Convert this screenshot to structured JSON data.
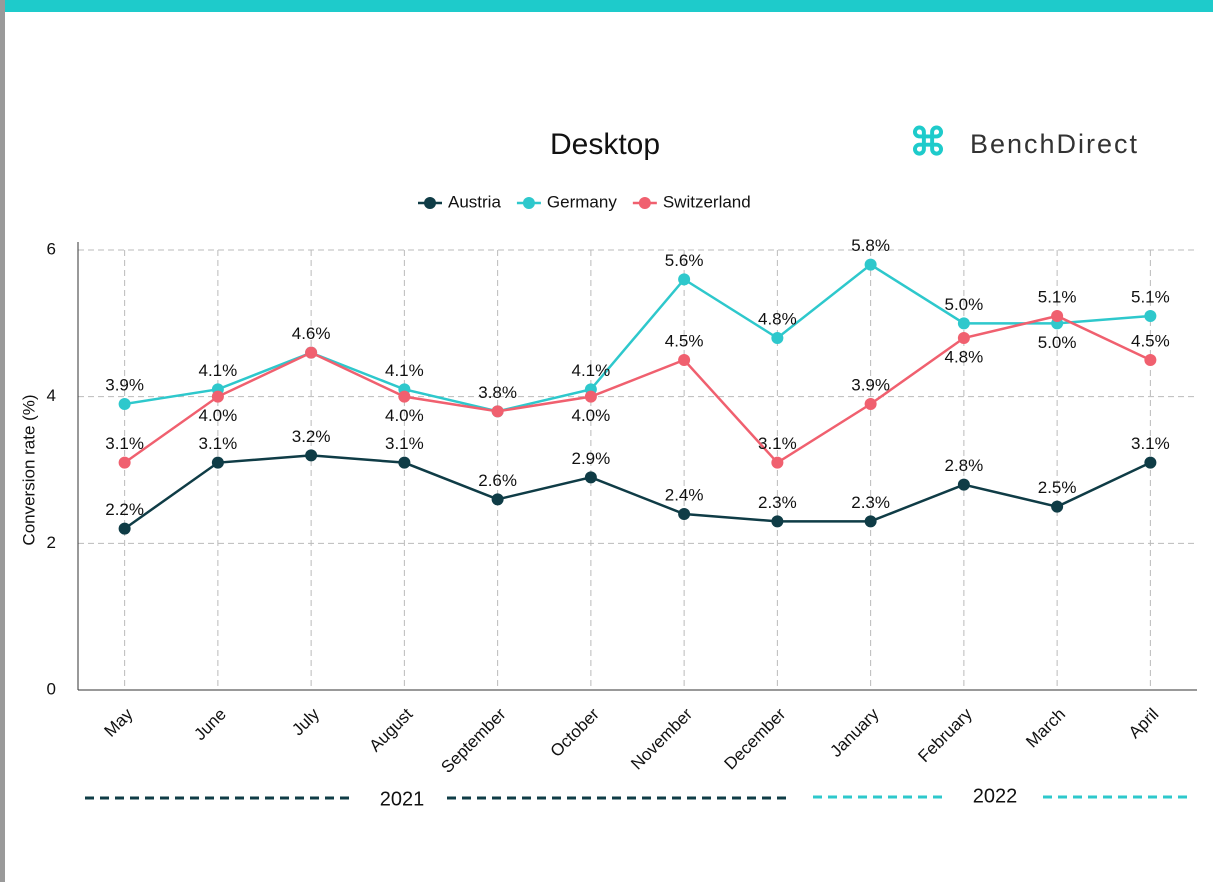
{
  "brand": "BenchDirect",
  "chart_data": {
    "type": "line",
    "title": "Desktop",
    "y_label": "Conversion rate (%)",
    "categories": [
      "May",
      "June",
      "July",
      "August",
      "September",
      "October",
      "November",
      "December",
      "January",
      "February",
      "March",
      "April"
    ],
    "series": [
      {
        "name": "Austria",
        "color": "#0f3c46",
        "values": [
          2.2,
          3.1,
          3.2,
          3.1,
          2.6,
          2.9,
          2.4,
          2.3,
          2.3,
          2.8,
          2.5,
          3.1
        ],
        "value_labels": [
          "2.2%",
          "3.1%",
          "3.2%",
          "3.1%",
          "2.6%",
          "2.9%",
          "2.4%",
          "2.3%",
          "2.3%",
          "2.8%",
          "2.5%",
          "3.1%"
        ]
      },
      {
        "name": "Germany",
        "color": "#2ec8cc",
        "values": [
          3.9,
          4.1,
          4.6,
          4.1,
          3.8,
          4.1,
          5.6,
          4.8,
          5.8,
          5.0,
          5.0,
          5.1
        ],
        "value_labels": [
          "3.9%",
          "4.1%",
          "4.6%",
          "4.1%",
          "3.8%",
          "4.1%",
          "5.6%",
          "4.8%",
          "5.8%",
          "5.0%",
          "5.0%",
          "5.1%"
        ]
      },
      {
        "name": "Switzerland",
        "color": "#f0606f",
        "values": [
          3.1,
          4.0,
          4.6,
          4.0,
          3.8,
          4.0,
          4.5,
          3.1,
          3.9,
          4.8,
          5.1,
          4.5
        ],
        "value_labels": [
          "3.1%",
          "4.0%",
          "4.6%",
          "4.0%",
          "3.8%",
          "4.0%",
          "4.5%",
          "3.1%",
          "3.9%",
          "4.8%",
          "5.1%",
          "4.5%"
        ]
      }
    ],
    "ylim": [
      0,
      6
    ],
    "yticks": [
      0,
      2,
      4,
      6
    ],
    "grid": true,
    "legend": "top",
    "periods": [
      "2021",
      "2022"
    ]
  }
}
